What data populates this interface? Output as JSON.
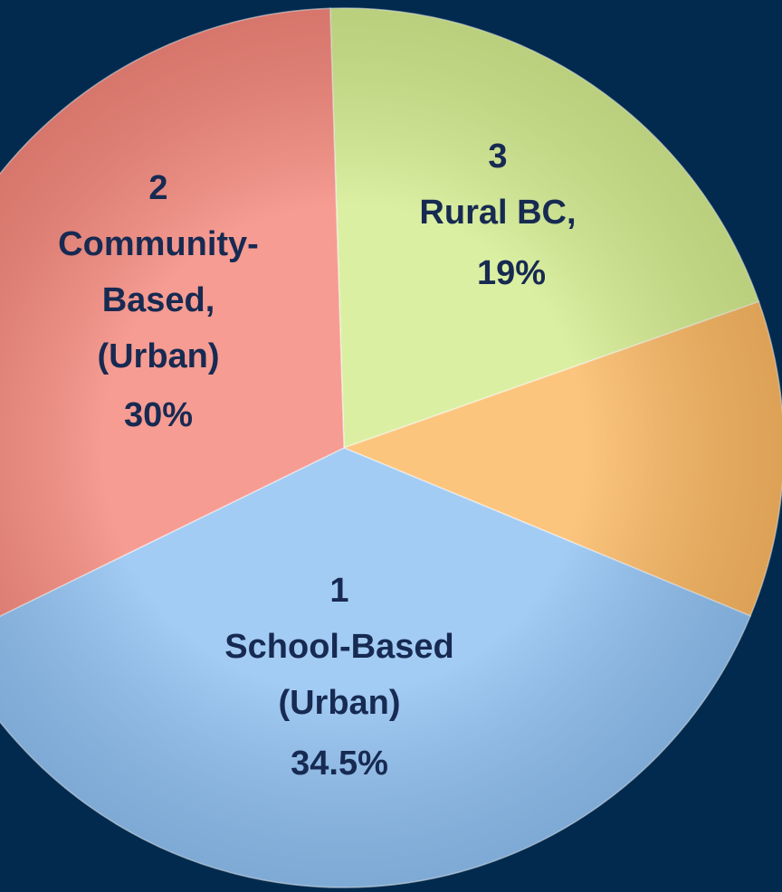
{
  "chart_data": {
    "type": "pie",
    "categories": [
      [
        "1",
        "School-Based",
        "(Urban)"
      ],
      [
        "2",
        "Community-",
        "Based,",
        "(Urban)"
      ],
      [
        "3",
        "Rural BC,"
      ],
      null
    ],
    "values": [
      34.5,
      30,
      19,
      11
    ],
    "value_labels": [
      "34.5%",
      "30%",
      "19%",
      null
    ],
    "colors": [
      "#8fc1f2",
      "#f4867a",
      "#d3ec8e",
      "#fbb862"
    ],
    "order": "clockwise"
  }
}
